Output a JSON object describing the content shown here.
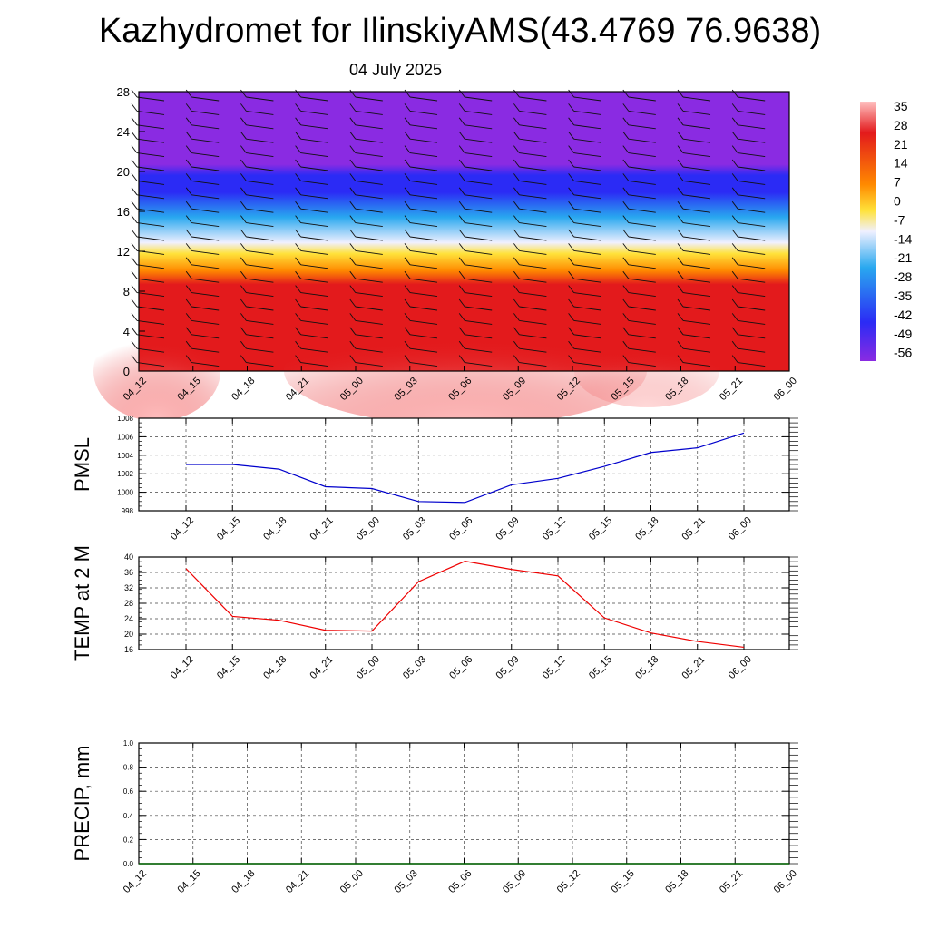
{
  "title": "Kazhydromet for IlinskiyAMS(43.4769 76.9638)",
  "subtitle": "04 July 2025",
  "chart_data": [
    {
      "type": "heatmap",
      "name": "temperature-wind-cross-section",
      "x_labels": [
        "04_12",
        "04_15",
        "04_18",
        "04_21",
        "05_00",
        "05_03",
        "05_06",
        "05_09",
        "05_12",
        "05_15",
        "05_18",
        "05_21",
        "06_00"
      ],
      "y_ticks": [
        0,
        4,
        8,
        12,
        16,
        20,
        24,
        28
      ],
      "ylim": [
        0,
        28
      ],
      "colorbar_labels": [
        "35",
        "28",
        "21",
        "14",
        "7",
        "0",
        "-7",
        "-14",
        "-21",
        "-28",
        "-35",
        "-42",
        "-49",
        "-56"
      ],
      "colors": {
        "top": "#8a2be2",
        "cold": "#2b2bf5",
        "cool": "#29a8ef",
        "freezing": "#f0f0ff",
        "mild": "#ffe23a",
        "warm": "#ff8a00",
        "hot": "#e31a1c",
        "hottest": "#ffc0c0"
      }
    },
    {
      "type": "line",
      "name": "pmsl",
      "ylabel": "PMSL",
      "x": [
        "04_12",
        "04_15",
        "04_18",
        "04_21",
        "05_00",
        "05_03",
        "05_06",
        "05_09",
        "05_12",
        "05_15",
        "05_18",
        "05_21",
        "06_00"
      ],
      "values": [
        1003.0,
        1003.0,
        1002.5,
        1000.6,
        1000.4,
        999.0,
        998.9,
        1000.8,
        1001.5,
        1002.8,
        1004.3,
        1004.8,
        1006.4
      ],
      "ylim": [
        998,
        1008
      ],
      "y_ticks": [
        998,
        1000,
        1002,
        1004,
        1006,
        1008
      ],
      "color": "#0000cc",
      "grid": true
    },
    {
      "type": "line",
      "name": "temp-2m",
      "ylabel": "TEMP at 2 M",
      "x": [
        "04_12",
        "04_15",
        "04_18",
        "04_21",
        "05_00",
        "05_03",
        "05_06",
        "05_09",
        "05_12",
        "05_15",
        "05_18",
        "05_21",
        "06_00"
      ],
      "values": [
        37.0,
        24.6,
        23.6,
        21.0,
        20.8,
        33.6,
        38.9,
        36.8,
        35.1,
        24.2,
        20.3,
        18.1,
        16.6
      ],
      "ylim": [
        16,
        40
      ],
      "y_ticks": [
        16,
        20,
        24,
        28,
        32,
        36,
        40
      ],
      "color": "#ee0000",
      "grid": true
    },
    {
      "type": "line",
      "name": "precip",
      "ylabel": "PRECIP, mm",
      "x": [
        "04_12",
        "04_15",
        "04_18",
        "04_21",
        "05_00",
        "05_03",
        "05_06",
        "05_09",
        "05_12",
        "05_15",
        "05_18",
        "05_21",
        "06_00"
      ],
      "values": [
        0,
        0,
        0,
        0,
        0,
        0,
        0,
        0,
        0,
        0,
        0,
        0,
        0
      ],
      "ylim": [
        0,
        1
      ],
      "y_ticks": [
        "0.0",
        "0.2",
        "0.4",
        "0.6",
        "0.8",
        "1.0"
      ],
      "color": "#006400",
      "grid": true
    }
  ]
}
